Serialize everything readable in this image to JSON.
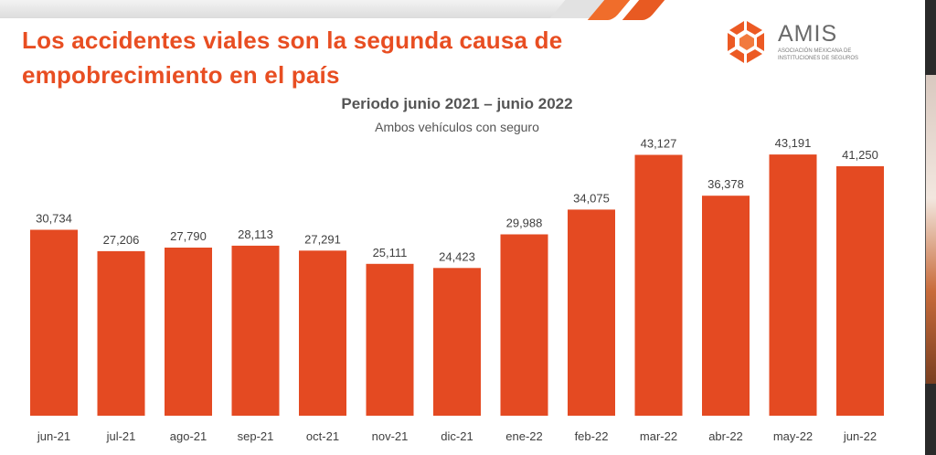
{
  "slide": {
    "title": "Los accidentes viales son la segunda causa de empobrecimiento en el país"
  },
  "logo": {
    "name": "AMIS",
    "subtitle": "Asociación Mexicana de Instituciones de Seguros",
    "color": "#ec5a24"
  },
  "colors": {
    "accent": "#e84e22",
    "bar": "#e44a22",
    "text": "#555555"
  },
  "chart_data": {
    "type": "bar",
    "title": "Periodo junio 2021 – junio 2022",
    "subtitle": "Ambos vehículos con seguro",
    "xlabel": "",
    "ylabel": "",
    "ylim": [
      0,
      45000
    ],
    "grid": false,
    "categories": [
      "jun-21",
      "jul-21",
      "ago-21",
      "sep-21",
      "oct-21",
      "nov-21",
      "dic-21",
      "ene-22",
      "feb-22",
      "mar-22",
      "abr-22",
      "may-22",
      "jun-22"
    ],
    "values": [
      30734,
      27206,
      27790,
      28113,
      27291,
      25111,
      24423,
      29988,
      34075,
      43127,
      36378,
      43191,
      41250
    ],
    "value_labels": [
      "30,734",
      "27,206",
      "27,790",
      "28,113",
      "27,291",
      "25,111",
      "24,423",
      "29,988",
      "34,075",
      "43,127",
      "36,378",
      "43,191",
      "41,250"
    ]
  }
}
